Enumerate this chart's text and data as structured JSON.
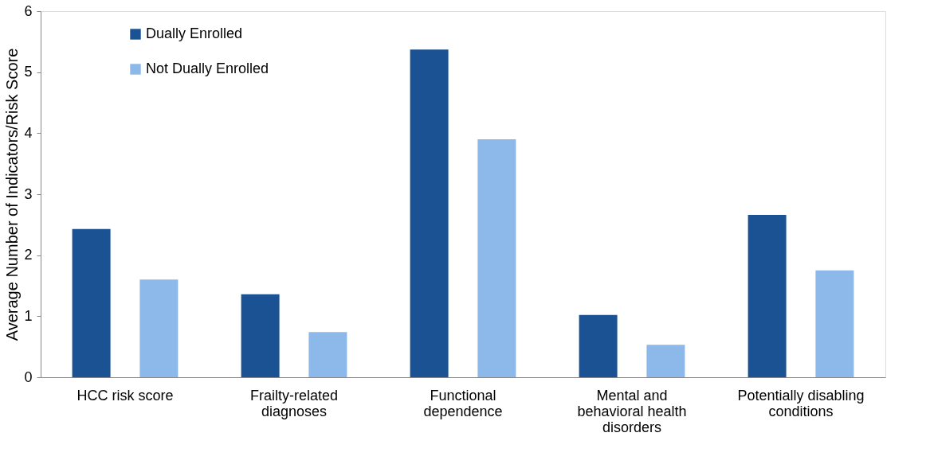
{
  "chart_data": {
    "type": "bar",
    "ylabel": "Average Number of Indicators/Risk Score",
    "categories": [
      "HCC risk score",
      "Frailty-related\ndiagnoses",
      "Functional\ndependence",
      "Mental and\nbehavioral health\ndisorders",
      "Potentially disabling\nconditions"
    ],
    "series": [
      {
        "name": "Dually Enrolled",
        "color": "#1a5294",
        "values": [
          2.43,
          1.36,
          5.37,
          1.02,
          2.66
        ]
      },
      {
        "name": "Not Dually Enrolled",
        "color": "#8db9ea",
        "values": [
          1.6,
          0.74,
          3.9,
          0.53,
          1.75
        ]
      }
    ],
    "ylim": [
      0,
      6
    ],
    "yticks": [
      0,
      1,
      2,
      3,
      4,
      5,
      6
    ],
    "grid": false,
    "legend": "top left"
  }
}
